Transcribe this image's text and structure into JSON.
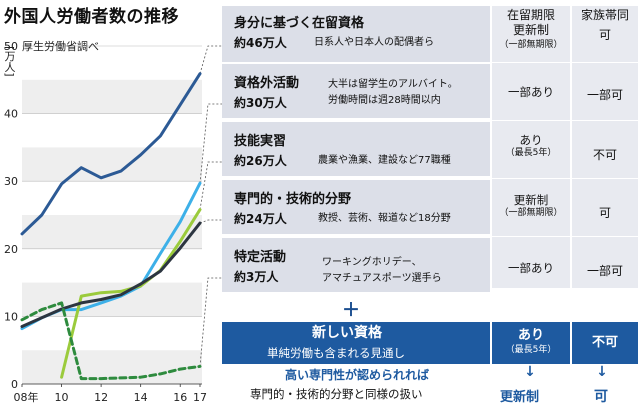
{
  "title": "外国人労働者数の推移",
  "source": "厚生労働省調べ",
  "unit_label": "[万人]",
  "y_ticks": [
    "50",
    "40",
    "30",
    "20",
    "10",
    "0"
  ],
  "x_ticks": [
    "08年",
    "10",
    "12",
    "14",
    "16",
    "17"
  ],
  "table": {
    "header_stay": "在留期限",
    "header_stay2": "更新制",
    "header_stay_note": "（一部無期限）",
    "header_family": "家族帯同",
    "rows": [
      {
        "name": "身分に基づく在留資格",
        "count": "約46万人",
        "desc1": "日系人や日本人の配偶者ら",
        "desc2": "",
        "stay": "",
        "stay_note": "",
        "family": "可"
      },
      {
        "name": "資格外活動",
        "count": "約30万人",
        "desc1": "大半は留学生のアルバイト。",
        "desc2": "労働時間は週28時間以内",
        "stay": "一部あり",
        "stay_note": "",
        "family": "一部可"
      },
      {
        "name": "技能実習",
        "count": "約26万人",
        "desc1": "農業や漁業、建設など77職種",
        "desc2": "",
        "stay": "あり",
        "stay_note": "（最長5年）",
        "family": "不可"
      },
      {
        "name": "専門的・技術的分野",
        "count": "約24万人",
        "desc1": "教授、芸術、報道など18分野",
        "desc2": "",
        "stay": "更新制",
        "stay_note": "（一部無期限）",
        "family": "可"
      },
      {
        "name": "特定活動",
        "count": "約3万人",
        "desc1": "ワーキングホリデー、",
        "desc2": "アマチュアスポーツ選手ら",
        "stay": "一部あり",
        "stay_note": "",
        "family": "一部可"
      }
    ]
  },
  "plus": "＋",
  "new_status": {
    "title": "新しい資格",
    "subtitle": "単純労働も含まれる見通し",
    "stay": "あり",
    "stay_note": "（最長5年）",
    "family": "不可",
    "condition": "高い専門性が認められれば",
    "condition_result": "専門的・技術的分野と同様の扱い",
    "arrow": "↓",
    "result_stay": "更新制",
    "result_family": "可"
  },
  "colors": {
    "navy": "#2c5a95",
    "lightblue": "#3db0e8",
    "lime": "#9bcb3c",
    "green": "#2e8b3e",
    "newbox": "#1e5aa0"
  },
  "chart_data": {
    "type": "line",
    "x": [
      2008,
      2009,
      2010,
      2011,
      2012,
      2013,
      2014,
      2015,
      2016,
      2017
    ],
    "ylim": [
      0,
      50
    ],
    "series": [
      {
        "name": "身分に基づく在留資格",
        "color": "#2c5a95",
        "style": "solid",
        "values": [
          22.2,
          25.0,
          29.6,
          32.0,
          30.5,
          31.5,
          33.9,
          36.7,
          41.3,
          45.9
        ]
      },
      {
        "name": "資格外活動",
        "color": "#3db0e8",
        "style": "solid",
        "values": [
          8.2,
          9.8,
          11.0,
          11.0,
          12.0,
          13.0,
          14.5,
          19.3,
          24.0,
          29.7
        ]
      },
      {
        "name": "技能実習",
        "color": "#9bcb3c",
        "style": "solid",
        "values": [
          null,
          null,
          1.0,
          13.0,
          13.5,
          13.7,
          14.5,
          16.8,
          21.1,
          25.8
        ]
      },
      {
        "name": "専門的・技術的分野",
        "color": "#2c3540",
        "style": "solid",
        "values": [
          8.5,
          9.8,
          11.1,
          12.0,
          12.5,
          13.2,
          14.8,
          16.7,
          20.1,
          23.8
        ]
      },
      {
        "name": "特定活動",
        "color": "#2e8b3e",
        "style": "dashed",
        "values": [
          9.5,
          11.0,
          12.0,
          0.8,
          0.8,
          0.9,
          1.0,
          1.5,
          2.2,
          2.6
        ]
      }
    ]
  }
}
